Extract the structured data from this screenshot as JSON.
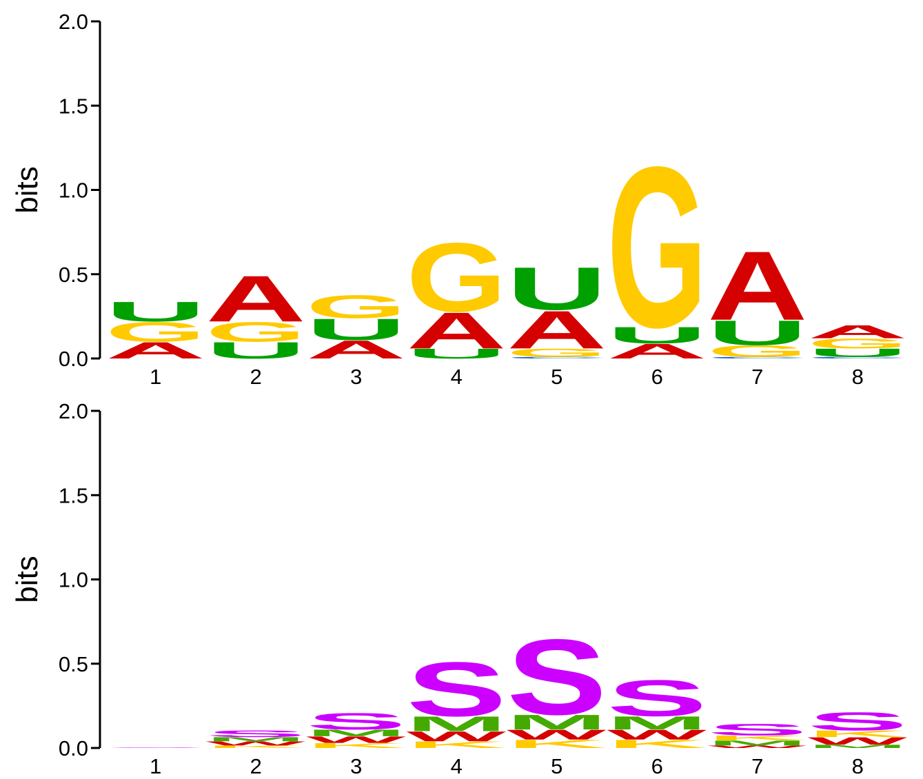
{
  "colors": {
    "A": "#d50000",
    "C": "#1565c0",
    "G": "#ffca00",
    "U": "#00a000",
    "S": "#cc00ff",
    "M": "#44aa00",
    "W": "#d50000",
    "K": "#ffca00"
  },
  "chart_data": [
    {
      "type": "sequence-logo",
      "ylabel": "bits",
      "ylim": [
        0,
        2
      ],
      "yticks": [
        "0.0",
        "0.5",
        "1.0",
        "1.5",
        "2.0"
      ],
      "positions": [
        "1",
        "2",
        "3",
        "4",
        "5",
        "6",
        "7",
        "8"
      ],
      "stacks": [
        [
          {
            "letter": "A",
            "bits": 0.1
          },
          {
            "letter": "G",
            "bits": 0.12
          },
          {
            "letter": "U",
            "bits": 0.12
          }
        ],
        [
          {
            "letter": "U",
            "bits": 0.1
          },
          {
            "letter": "G",
            "bits": 0.12
          },
          {
            "letter": "A",
            "bits": 0.28
          }
        ],
        [
          {
            "letter": "A",
            "bits": 0.11
          },
          {
            "letter": "U",
            "bits": 0.13
          },
          {
            "letter": "G",
            "bits": 0.14
          }
        ],
        [
          {
            "letter": "U",
            "bits": 0.06
          },
          {
            "letter": "A",
            "bits": 0.22
          },
          {
            "letter": "G",
            "bits": 0.42
          }
        ],
        [
          {
            "letter": "C",
            "bits": 0.01
          },
          {
            "letter": "G",
            "bits": 0.05
          },
          {
            "letter": "A",
            "bits": 0.23
          },
          {
            "letter": "U",
            "bits": 0.26
          }
        ],
        [
          {
            "letter": "A",
            "bits": 0.09
          },
          {
            "letter": "U",
            "bits": 0.1
          },
          {
            "letter": "G",
            "bits": 0.98
          }
        ],
        [
          {
            "letter": "C",
            "bits": 0.01
          },
          {
            "letter": "G",
            "bits": 0.07
          },
          {
            "letter": "U",
            "bits": 0.15
          },
          {
            "letter": "A",
            "bits": 0.42
          }
        ],
        [
          {
            "letter": "C",
            "bits": 0.01
          },
          {
            "letter": "U",
            "bits": 0.05
          },
          {
            "letter": "G",
            "bits": 0.06
          },
          {
            "letter": "A",
            "bits": 0.08
          }
        ]
      ]
    },
    {
      "type": "sequence-logo",
      "ylabel": "bits",
      "ylim": [
        0,
        2
      ],
      "yticks": [
        "0.0",
        "0.5",
        "1.0",
        "1.5",
        "2.0"
      ],
      "positions": [
        "1",
        "2",
        "3",
        "4",
        "5",
        "6",
        "7",
        "8"
      ],
      "stacks": [
        [
          {
            "letter": "S",
            "bits": 0.003
          }
        ],
        [
          {
            "letter": "K",
            "bits": 0.015
          },
          {
            "letter": "W",
            "bits": 0.025
          },
          {
            "letter": "M",
            "bits": 0.025
          },
          {
            "letter": "S",
            "bits": 0.04
          }
        ],
        [
          {
            "letter": "K",
            "bits": 0.03
          },
          {
            "letter": "W",
            "bits": 0.04
          },
          {
            "letter": "M",
            "bits": 0.04
          },
          {
            "letter": "S",
            "bits": 0.1
          }
        ],
        [
          {
            "letter": "K",
            "bits": 0.04
          },
          {
            "letter": "W",
            "bits": 0.06
          },
          {
            "letter": "M",
            "bits": 0.09
          },
          {
            "letter": "S",
            "bits": 0.33
          }
        ],
        [
          {
            "letter": "K",
            "bits": 0.05
          },
          {
            "letter": "W",
            "bits": 0.06
          },
          {
            "letter": "M",
            "bits": 0.09
          },
          {
            "letter": "S",
            "bits": 0.46
          }
        ],
        [
          {
            "letter": "K",
            "bits": 0.05
          },
          {
            "letter": "W",
            "bits": 0.06
          },
          {
            "letter": "M",
            "bits": 0.08
          },
          {
            "letter": "S",
            "bits": 0.22
          }
        ],
        [
          {
            "letter": "W",
            "bits": 0.015
          },
          {
            "letter": "M",
            "bits": 0.03
          },
          {
            "letter": "K",
            "bits": 0.03
          },
          {
            "letter": "S",
            "bits": 0.07
          }
        ],
        [
          {
            "letter": "M",
            "bits": 0.02
          },
          {
            "letter": "W",
            "bits": 0.045
          },
          {
            "letter": "K",
            "bits": 0.04
          },
          {
            "letter": "S",
            "bits": 0.11
          }
        ]
      ]
    }
  ]
}
